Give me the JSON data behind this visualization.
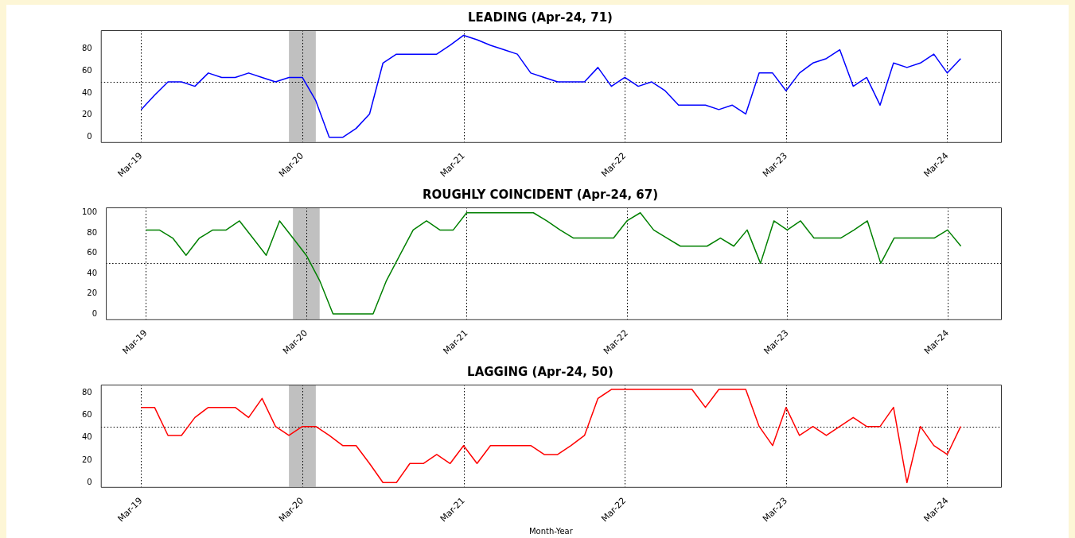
{
  "chart_data": [
    {
      "type": "line",
      "title": "LEADING (Apr-24, 71)",
      "x": [
        "2019-03",
        "2019-04",
        "2019-05",
        "2019-06",
        "2019-07",
        "2019-08",
        "2019-09",
        "2019-10",
        "2019-11",
        "2019-12",
        "2020-01",
        "2020-02",
        "2020-03",
        "2020-04",
        "2020-05",
        "2020-06",
        "2020-07",
        "2020-08",
        "2020-09",
        "2020-10",
        "2020-11",
        "2020-12",
        "2021-01",
        "2021-02",
        "2021-03",
        "2021-04",
        "2021-05",
        "2021-06",
        "2021-07",
        "2021-08",
        "2021-09",
        "2021-10",
        "2021-11",
        "2021-12",
        "2022-01",
        "2022-02",
        "2022-03",
        "2022-04",
        "2022-05",
        "2022-06",
        "2022-07",
        "2022-08",
        "2022-09",
        "2022-10",
        "2022-11",
        "2022-12",
        "2023-01",
        "2023-02",
        "2023-03",
        "2023-04",
        "2023-05",
        "2023-06",
        "2023-07",
        "2023-08",
        "2023-09",
        "2023-10",
        "2023-11",
        "2023-12",
        "2024-01",
        "2024-02",
        "2024-03",
        "2024-04"
      ],
      "series": [
        {
          "color": "#0000ff",
          "values": [
            25,
            38,
            50,
            50,
            46,
            58,
            54,
            54,
            58,
            54,
            50,
            54,
            54,
            33,
            0,
            0,
            8,
            21,
            67,
            75,
            75,
            75,
            75,
            83,
            92,
            88,
            83,
            79,
            75,
            58,
            54,
            50,
            50,
            50,
            63,
            46,
            54,
            46,
            50,
            42,
            29,
            29,
            29,
            25,
            29,
            21,
            58,
            58,
            42,
            58,
            67,
            71,
            79,
            46,
            54,
            29,
            67,
            63,
            67,
            75,
            58,
            71
          ]
        }
      ],
      "xlim": [
        "2018-12",
        "2024-07"
      ],
      "xticks": [
        {
          "value": "2019-03",
          "label": "Mar-19"
        },
        {
          "value": "2020-03",
          "label": "Mar-20"
        },
        {
          "value": "2021-03",
          "label": "Mar-21"
        },
        {
          "value": "2022-03",
          "label": "Mar-22"
        },
        {
          "value": "2023-03",
          "label": "Mar-23"
        },
        {
          "value": "2024-03",
          "label": "Mar-24"
        }
      ],
      "ylim": [
        -4.3,
        96.6
      ],
      "yticks": [
        0,
        20,
        40,
        60,
        80
      ],
      "grid": "x",
      "legend": false,
      "marker": "none",
      "line_style": "solid",
      "ref_lines": [
        {
          "axis": "y",
          "value": 50,
          "color": "#000000",
          "line_style": "dotted"
        }
      ],
      "bands": [
        {
          "axis": "x",
          "from": "2020-02",
          "to": "2020-04",
          "color": "#c0c0c0"
        }
      ]
    },
    {
      "type": "line",
      "title": "ROUGHLY COINCIDENT (Apr-24, 67)",
      "x": [
        "2019-03",
        "2019-04",
        "2019-05",
        "2019-06",
        "2019-07",
        "2019-08",
        "2019-09",
        "2019-10",
        "2019-11",
        "2019-12",
        "2020-01",
        "2020-02",
        "2020-03",
        "2020-04",
        "2020-05",
        "2020-06",
        "2020-07",
        "2020-08",
        "2020-09",
        "2020-10",
        "2020-11",
        "2020-12",
        "2021-01",
        "2021-02",
        "2021-03",
        "2021-04",
        "2021-05",
        "2021-06",
        "2021-07",
        "2021-08",
        "2021-09",
        "2021-10",
        "2021-11",
        "2021-12",
        "2022-01",
        "2022-02",
        "2022-03",
        "2022-04",
        "2022-05",
        "2022-06",
        "2022-07",
        "2022-08",
        "2022-09",
        "2022-10",
        "2022-11",
        "2022-12",
        "2023-01",
        "2023-02",
        "2023-03",
        "2023-04",
        "2023-05",
        "2023-06",
        "2023-07",
        "2023-08",
        "2023-09",
        "2023-10",
        "2023-11",
        "2023-12",
        "2024-01",
        "2024-02",
        "2024-03",
        "2024-04"
      ],
      "series": [
        {
          "color": "#008000",
          "values": [
            83,
            83,
            75,
            58,
            75,
            83,
            83,
            92,
            75,
            58,
            92,
            75,
            58,
            33,
            0,
            0,
            0,
            0,
            33,
            58,
            83,
            92,
            83,
            83,
            100,
            100,
            100,
            100,
            100,
            100,
            92,
            83,
            75,
            75,
            75,
            75,
            92,
            100,
            83,
            75,
            67,
            67,
            67,
            75,
            67,
            83,
            50,
            92,
            83,
            92,
            75,
            75,
            75,
            83,
            92,
            50,
            75,
            75,
            75,
            75,
            83,
            67
          ]
        }
      ],
      "xlim": [
        "2018-12",
        "2024-07"
      ],
      "xticks": [
        {
          "value": "2019-03",
          "label": "Mar-19"
        },
        {
          "value": "2020-03",
          "label": "Mar-20"
        },
        {
          "value": "2021-03",
          "label": "Mar-21"
        },
        {
          "value": "2022-03",
          "label": "Mar-22"
        },
        {
          "value": "2023-03",
          "label": "Mar-23"
        },
        {
          "value": "2024-03",
          "label": "Mar-24"
        }
      ],
      "ylim": [
        -5.3,
        105.3
      ],
      "yticks": [
        0,
        20,
        40,
        60,
        80,
        100
      ],
      "grid": "x",
      "legend": false,
      "marker": "none",
      "line_style": "solid",
      "ref_lines": [
        {
          "axis": "y",
          "value": 50,
          "color": "#000000",
          "line_style": "dotted"
        }
      ],
      "bands": [
        {
          "axis": "x",
          "from": "2020-02",
          "to": "2020-04",
          "color": "#c0c0c0"
        }
      ]
    },
    {
      "type": "line",
      "title": "LAGGING (Apr-24, 50)",
      "xlabel": "Month-Year",
      "x": [
        "2019-03",
        "2019-04",
        "2019-05",
        "2019-06",
        "2019-07",
        "2019-08",
        "2019-09",
        "2019-10",
        "2019-11",
        "2019-12",
        "2020-01",
        "2020-02",
        "2020-03",
        "2020-04",
        "2020-05",
        "2020-06",
        "2020-07",
        "2020-08",
        "2020-09",
        "2020-10",
        "2020-11",
        "2020-12",
        "2021-01",
        "2021-02",
        "2021-03",
        "2021-04",
        "2021-05",
        "2021-06",
        "2021-07",
        "2021-08",
        "2021-09",
        "2021-10",
        "2021-11",
        "2021-12",
        "2022-01",
        "2022-02",
        "2022-03",
        "2022-04",
        "2022-05",
        "2022-06",
        "2022-07",
        "2022-08",
        "2022-09",
        "2022-10",
        "2022-11",
        "2022-12",
        "2023-01",
        "2023-02",
        "2023-03",
        "2023-04",
        "2023-05",
        "2023-06",
        "2023-07",
        "2023-08",
        "2023-09",
        "2023-10",
        "2023-11",
        "2023-12",
        "2024-01",
        "2024-02",
        "2024-03",
        "2024-04"
      ],
      "series": [
        {
          "color": "#ff0000",
          "values": [
            67,
            67,
            42,
            42,
            58,
            67,
            67,
            67,
            58,
            75,
            50,
            42,
            50,
            50,
            42,
            33,
            33,
            17,
            0,
            0,
            17,
            17,
            25,
            17,
            33,
            17,
            33,
            33,
            33,
            33,
            25,
            25,
            33,
            42,
            75,
            83,
            83,
            83,
            83,
            83,
            83,
            83,
            67,
            83,
            83,
            83,
            50,
            33,
            67,
            42,
            50,
            42,
            50,
            58,
            50,
            50,
            67,
            0,
            50,
            33,
            25,
            50
          ]
        }
      ],
      "xlim": [
        "2018-12",
        "2024-07"
      ],
      "xticks": [
        {
          "value": "2019-03",
          "label": "Mar-19"
        },
        {
          "value": "2020-03",
          "label": "Mar-20"
        },
        {
          "value": "2021-03",
          "label": "Mar-21"
        },
        {
          "value": "2022-03",
          "label": "Mar-22"
        },
        {
          "value": "2023-03",
          "label": "Mar-23"
        },
        {
          "value": "2024-03",
          "label": "Mar-24"
        }
      ],
      "ylim": [
        -3.9,
        87.3
      ],
      "yticks": [
        0,
        20,
        40,
        60,
        80
      ],
      "grid": "x",
      "legend": false,
      "marker": "none",
      "line_style": "solid",
      "ref_lines": [
        {
          "axis": "y",
          "value": 50,
          "color": "#000000",
          "line_style": "dotted"
        }
      ],
      "bands": [
        {
          "axis": "x",
          "from": "2020-02",
          "to": "2020-04",
          "color": "#c0c0c0"
        }
      ]
    }
  ]
}
